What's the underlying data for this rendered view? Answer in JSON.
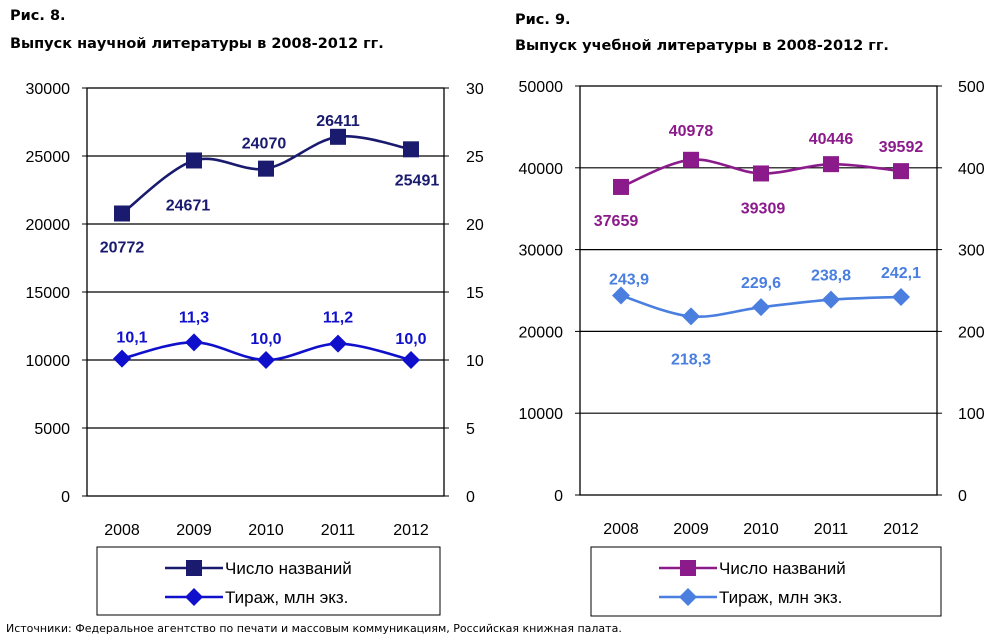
{
  "chart_data": [
    {
      "type": "line",
      "figure": "Рис. 8.",
      "title": "Выпуск научной литературы в 2008-2012 гг.",
      "categories": [
        "2008",
        "2009",
        "2010",
        "2011",
        "2012"
      ],
      "y_left": {
        "range": [
          0,
          30000
        ],
        "ticks": [
          "0",
          "5000",
          "10000",
          "15000",
          "20000",
          "25000",
          "30000"
        ]
      },
      "y_right": {
        "range": [
          0,
          30
        ],
        "ticks": [
          "0",
          "5",
          "10",
          "15",
          "20",
          "25",
          "30"
        ]
      },
      "grid": true,
      "legend": "bottom",
      "series": [
        {
          "name": "Число названий",
          "axis": "left",
          "marker": "square",
          "color": "#1a1a6e",
          "values": [
            20772,
            24671,
            24070,
            26411,
            25491
          ],
          "labels": [
            "20772",
            "24671",
            "24070",
            "26411",
            "25491"
          ]
        },
        {
          "name": "Тираж, млн экз.",
          "axis": "right",
          "marker": "diamond",
          "color": "#1010cc",
          "values": [
            10.1,
            11.3,
            10.0,
            11.2,
            10.0
          ],
          "labels": [
            "10,1",
            "11,3",
            "10,0",
            "11,2",
            "10,0"
          ]
        }
      ]
    },
    {
      "type": "line",
      "figure": "Рис. 9.",
      "title": "Выпуск учебной литературы в 2008-2012 гг.",
      "categories": [
        "2008",
        "2009",
        "2010",
        "2011",
        "2012"
      ],
      "y_left": {
        "range": [
          0,
          50000
        ],
        "ticks": [
          "0",
          "10000",
          "20000",
          "30000",
          "40000",
          "50000"
        ]
      },
      "y_right": {
        "range": [
          0,
          500
        ],
        "ticks": [
          "0",
          "100",
          "200",
          "300",
          "400",
          "500"
        ]
      },
      "grid": true,
      "legend": "bottom",
      "series": [
        {
          "name": "Число названий",
          "axis": "left",
          "marker": "square",
          "color": "#8b1a8b",
          "values": [
            37659,
            40978,
            39309,
            40446,
            39592
          ],
          "labels": [
            "37659",
            "40978",
            "39309",
            "40446",
            "39592"
          ]
        },
        {
          "name": "Тираж, млн экз.",
          "axis": "right",
          "marker": "diamond",
          "color": "#4a7fe0",
          "values": [
            243.9,
            218.3,
            229.6,
            238.8,
            242.1
          ],
          "labels": [
            "243,9",
            "218,3",
            "229,6",
            "238,8",
            "242,1"
          ]
        }
      ]
    }
  ],
  "source": "Источники: Федеральное агентство по печати и массовым коммуникациям, Российская книжная палата."
}
